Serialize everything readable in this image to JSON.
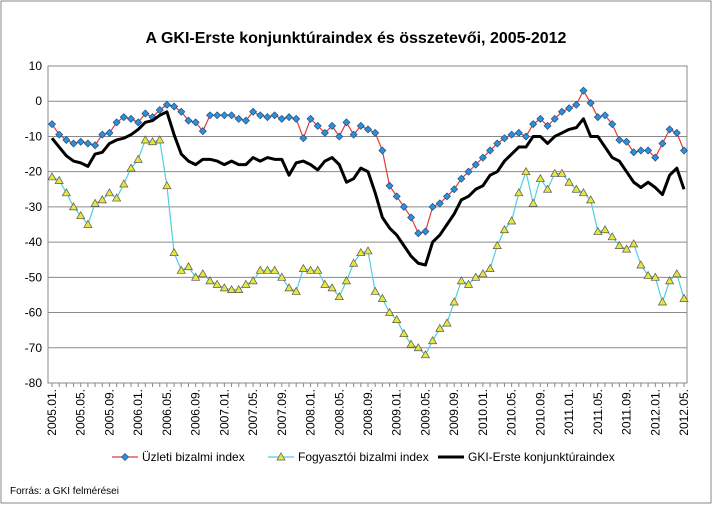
{
  "chart_data": {
    "type": "line",
    "title": "A GKI-Erste konjunktúraindex és összetevői, 2005-2012",
    "source": "Forrás: a GKI felmérései",
    "categories": [
      "2005.01.",
      null,
      null,
      null,
      "2005.05.",
      null,
      null,
      null,
      "2005.09.",
      null,
      null,
      null,
      "2006.01.",
      null,
      null,
      null,
      "2006.05.",
      null,
      null,
      null,
      "2006.09.",
      null,
      null,
      null,
      "2007.01.",
      null,
      null,
      null,
      "2007.05.",
      null,
      null,
      null,
      "2007.09.",
      null,
      null,
      null,
      "2008.01.",
      null,
      null,
      null,
      "2008.05.",
      null,
      null,
      null,
      "2008.09.",
      null,
      null,
      null,
      "2009.01.",
      null,
      null,
      null,
      "2009.05.",
      null,
      null,
      null,
      "2009.09.",
      null,
      null,
      null,
      "2010.01.",
      null,
      null,
      null,
      "2010.05.",
      null,
      null,
      null,
      "2010.09.",
      null,
      null,
      null,
      "2011.01.",
      null,
      null,
      null,
      "2011.05.",
      null,
      null,
      null,
      "2011.09.",
      null,
      null,
      null,
      "2012.01.",
      null,
      null,
      null,
      "2012.05."
    ],
    "series": [
      {
        "name": "Üzleti bizalmi index",
        "color": "#e03a3a",
        "marker": "diamond",
        "marker_color": "#2f8fd8",
        "values": [
          -6.5,
          -9.5,
          -11,
          -12,
          -11.5,
          -12,
          -12.5,
          -9.5,
          -9,
          -6,
          -4.5,
          -5,
          -6,
          -3.5,
          -4.5,
          -2.5,
          -1,
          -1.5,
          -3,
          -5.5,
          -6,
          -8.5,
          -4,
          -4,
          -4,
          -4,
          -5,
          -5.5,
          -3,
          -4,
          -4.5,
          -4,
          -5,
          -4.5,
          -5,
          -10.5,
          -5,
          -7,
          -9,
          -7,
          -10,
          -6,
          -9.5,
          -7,
          -8,
          -9,
          -14,
          -24,
          -27,
          -30,
          -33,
          -37.5,
          -37,
          -30,
          -29,
          -27,
          -25,
          -22,
          -20,
          -18,
          -16,
          -14,
          -12,
          -10.5,
          -9.5,
          -9,
          -10,
          -6.5,
          -5,
          -7,
          -5,
          -3,
          -2,
          -1,
          3,
          -0.5,
          -4.5,
          -4,
          -6.5,
          -11,
          -11.5,
          -14.5,
          -14,
          -14,
          -16,
          -12,
          -8,
          -9,
          -14
        ]
      },
      {
        "name": "Fogyasztói bizalmi index",
        "color": "#4fcfe0",
        "marker": "triangle",
        "marker_color": "#e6e63c",
        "values": [
          -21.5,
          -22.5,
          -26,
          -30,
          -32.5,
          -35,
          -29,
          -28,
          -26,
          -27.5,
          -23.5,
          -19,
          -16.5,
          -11,
          -11.5,
          -11,
          -24,
          -43,
          -48,
          -47,
          -50,
          -49,
          -51,
          -52,
          -53,
          -53.5,
          -53.5,
          -52,
          -51,
          -48,
          -48,
          -48,
          -50,
          -53,
          -54,
          -47.5,
          -48,
          -48,
          -52,
          -53,
          -55.5,
          -51,
          -46,
          -43,
          -42.5,
          -54,
          -56,
          -60,
          -62,
          -66,
          -69,
          -70,
          -72,
          -68,
          -64.5,
          -63,
          -57,
          -51,
          -52,
          -50,
          -49,
          -47.5,
          -41,
          -36.5,
          -34,
          -26,
          -20,
          -29,
          -22,
          -25,
          -20.5,
          -20.5,
          -23,
          -25,
          -26,
          -28,
          -37,
          -36.5,
          -38.5,
          -41,
          -42,
          -40.5,
          -46.5,
          -49.5,
          -50,
          -57,
          -51,
          -49,
          -56
        ]
      },
      {
        "name": "GKI-Erste konjunktúraindex",
        "color": "#000000",
        "values": [
          -10.5,
          -13,
          -15.5,
          -17,
          -17.5,
          -18.5,
          -15,
          -14.5,
          -12,
          -11,
          -10.5,
          -9.5,
          -8,
          -6,
          -5.5,
          -4,
          -3,
          -9.5,
          -15,
          -17,
          -18,
          -16.5,
          -16.5,
          -17,
          -18,
          -17,
          -18,
          -18,
          -16,
          -17,
          -16,
          -16.5,
          -16.5,
          -21,
          -17.5,
          -17,
          -18,
          -19.5,
          -17,
          -16,
          -18,
          -23,
          -22,
          -19,
          -20,
          -26,
          -33,
          -36,
          -38,
          -41,
          -44,
          -46,
          -46.5,
          -40,
          -38,
          -35,
          -32,
          -28,
          -27,
          -25,
          -24,
          -21,
          -20,
          -17,
          -15,
          -13,
          -13,
          -10,
          -10,
          -12,
          -10,
          -9,
          -8,
          -7.5,
          -5,
          -10,
          -10,
          -13,
          -16,
          -17,
          -20,
          -23,
          -24.5,
          -23,
          -24.5,
          -26.5,
          -21,
          -19,
          -25
        ]
      }
    ],
    "ylim": [
      -80,
      10
    ],
    "yticks": [
      -80,
      -70,
      -60,
      -50,
      -40,
      -30,
      -20,
      -10,
      0,
      10
    ],
    "grid": true
  }
}
